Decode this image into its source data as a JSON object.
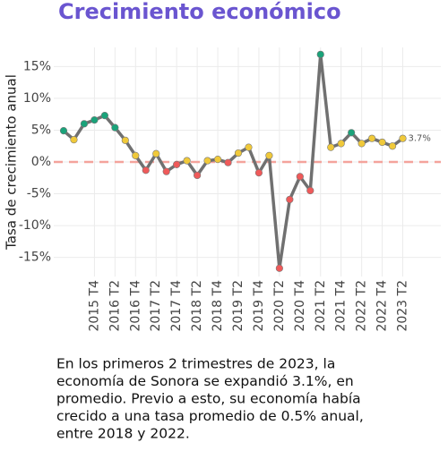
{
  "chart_data": {
    "type": "line",
    "title": "Crecimiento económico",
    "y_label": "Tasa de crecimiento anual",
    "categories": [
      null,
      null,
      null,
      "2015 T4",
      null,
      "2016 T2",
      null,
      "2016 T4",
      null,
      "2017 T2",
      null,
      "2017 T4",
      null,
      "2018 T2",
      null,
      "2018 T4",
      null,
      "2019 T2",
      null,
      "2019 T4",
      null,
      "2020 T2",
      null,
      "2020 T4",
      null,
      "2021 T2",
      null,
      "2021 T4",
      null,
      "2022 T2",
      null,
      "2022 T4",
      null,
      "2023 T2"
    ],
    "series": [
      {
        "color": "#707070",
        "values": [
          4.9,
          3.5,
          6.0,
          6.6,
          7.3,
          5.4,
          3.4,
          1.0,
          -1.3,
          1.3,
          -1.5,
          -0.4,
          0.2,
          -2.1,
          0.2,
          0.4,
          -0.1,
          1.4,
          2.3,
          -1.7,
          1.0,
          -16.7,
          -5.9,
          -2.3,
          -4.5,
          16.9,
          2.3,
          2.9,
          4.6,
          2.9,
          3.7,
          3.1,
          2.5,
          3.7
        ],
        "point_colors": [
          "#1aa37a",
          "#f0c93a",
          "#1aa37a",
          "#1aa37a",
          "#1aa37a",
          "#1aa37a",
          "#f0c93a",
          "#f0c93a",
          "#ef5a5a",
          "#f0c93a",
          "#ef5a5a",
          "#ef5a5a",
          "#f0c93a",
          "#ef5a5a",
          "#f0c93a",
          "#f0c93a",
          "#ef5a5a",
          "#f0c93a",
          "#f0c93a",
          "#ef5a5a",
          "#f0c93a",
          "#ef5a5a",
          "#ef5a5a",
          "#ef5a5a",
          "#ef5a5a",
          "#1aa37a",
          "#f0c93a",
          "#f0c93a",
          "#1aa37a",
          "#f0c93a",
          "#f0c93a",
          "#f0c93a",
          "#f0c93a",
          "#f0c93a"
        ],
        "value_labels": [
          null,
          null,
          null,
          null,
          null,
          null,
          null,
          null,
          null,
          null,
          null,
          null,
          null,
          null,
          null,
          null,
          null,
          null,
          null,
          null,
          null,
          null,
          null,
          null,
          null,
          null,
          null,
          null,
          null,
          null,
          null,
          null,
          null,
          "3.7%"
        ]
      }
    ],
    "ylim": [
      -18,
      18
    ],
    "yticks": [
      {
        "value": -15,
        "label": "-15%"
      },
      {
        "value": -10,
        "label": "-10%"
      },
      {
        "value": -5,
        "label": "-5%"
      },
      {
        "value": 0,
        "label": "0%"
      },
      {
        "value": 5,
        "label": "5%"
      },
      {
        "value": 10,
        "label": "10%"
      },
      {
        "value": 15,
        "label": "15%"
      }
    ],
    "grid": true,
    "hline": {
      "value": 0,
      "color": "#f4a39c"
    },
    "text": [
      "En los primeros 2 trimestres de 2023, la",
      "economía de Sonora se expandió 3.1%, en",
      "promedio. Previo a esto, su economía había",
      "crecido a una tasa promedio de 0.5% anual,",
      "entre 2018 y 2022."
    ]
  }
}
